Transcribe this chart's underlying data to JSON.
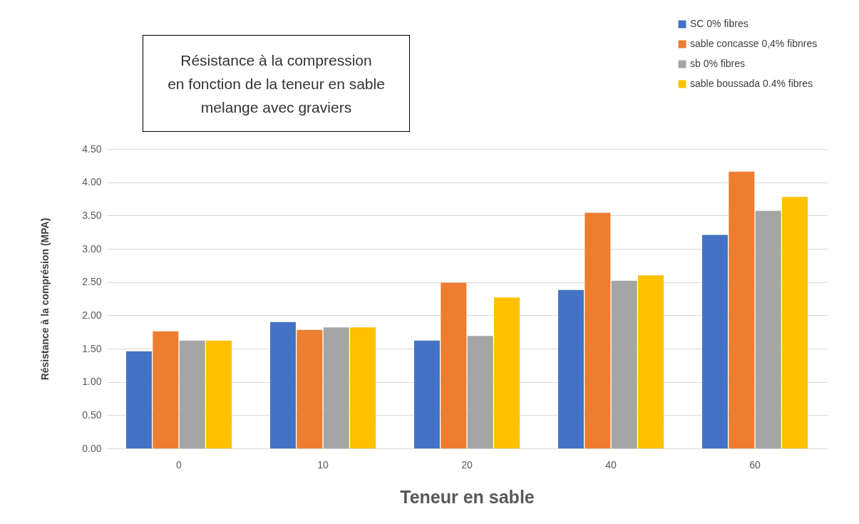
{
  "chart_data": {
    "type": "bar",
    "title": "Résistance à la compression\nen fonction de la teneur en sable\nmelange avec graviers",
    "xlabel": "Teneur en sable",
    "ylabel": "Résistance à la comprésion (MPA)",
    "categories": [
      "0",
      "10",
      "20",
      "40",
      "60"
    ],
    "series": [
      {
        "name": "SC 0% fibres",
        "color": "#4472c4",
        "values": [
          1.46,
          1.9,
          1.62,
          2.38,
          3.21
        ]
      },
      {
        "name": "sable concasse 0,4% fibnres",
        "color": "#ed7d31",
        "values": [
          1.76,
          1.78,
          2.49,
          3.54,
          4.16
        ]
      },
      {
        "name": "sb 0% fibres",
        "color": "#a5a5a5",
        "values": [
          1.62,
          1.82,
          1.69,
          2.52,
          3.57
        ]
      },
      {
        "name": "sable boussada 0.4% fibres",
        "color": "#ffc000",
        "values": [
          1.62,
          1.82,
          2.27,
          2.6,
          3.78
        ]
      }
    ],
    "ylim": [
      0,
      4.5
    ],
    "yticks": [
      {
        "value": 0,
        "label": "0.00"
      },
      {
        "value": 0.5,
        "label": "0.50"
      },
      {
        "value": 1,
        "label": "1.00"
      },
      {
        "value": 1.5,
        "label": "1.50"
      },
      {
        "value": 2,
        "label": "2.00"
      },
      {
        "value": 2.5,
        "label": "2.50"
      },
      {
        "value": 3,
        "label": "3.00"
      },
      {
        "value": 3.5,
        "label": "3.50"
      },
      {
        "value": 4,
        "label": "4.00"
      },
      {
        "value": 4.5,
        "label": "4.50"
      }
    ],
    "grid": "y",
    "legend": "top right"
  }
}
